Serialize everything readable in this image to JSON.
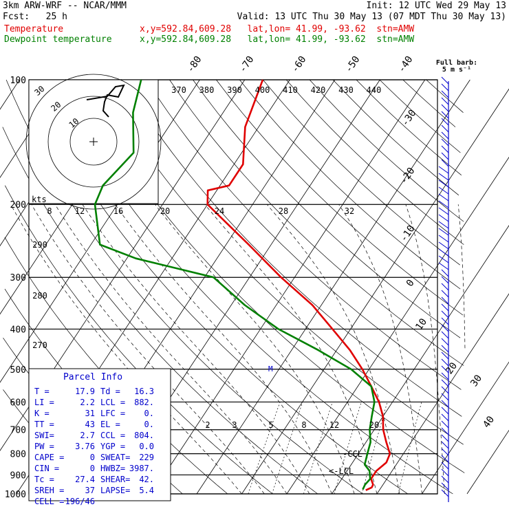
{
  "header": {
    "line1_left": "3km ARW-WRF -- NCAR/MMM",
    "line1_right": "Init: 12 UTC Wed 29 May 13",
    "line2_left": "Fcst:   25 h",
    "line2_right": "Valid: 13 UTC Thu 30 May 13 (07 MDT Thu 30 May 13)",
    "temp_label": "Temperature",
    "temp_info": "x,y=592.84,609.28   lat,lon= 41.99, -93.62  stn=AMW",
    "dew_label": "Dewpoint temperature",
    "dew_info": "x,y=592.84,609.28   lat,lon= 41.99, -93.62  stn=AMW"
  },
  "barb_legend": {
    "line1": "Full barb:",
    "line2": "5 m s⁻¹"
  },
  "hodograph": {
    "ring_labels": [
      "30",
      "20",
      "10"
    ],
    "units": "kts"
  },
  "parcel_info": {
    "title": "Parcel Info",
    "rows": [
      [
        "T  =",
        "17.9",
        "Td =",
        "16.3"
      ],
      [
        "LI =",
        "2.2",
        "LCL =",
        "882."
      ],
      [
        "K  =",
        "31",
        "LFC =",
        "0."
      ],
      [
        "TT =",
        "43",
        "EL  =",
        "0."
      ],
      [
        "SWI=",
        "2.7",
        "CCL =",
        "804."
      ],
      [
        "PW =",
        "3.76",
        "YGP =",
        "0.0"
      ],
      [
        "CAPE =",
        "0",
        "SWEAT=",
        "229"
      ],
      [
        "CIN =",
        "0",
        "HWBZ=",
        "3987."
      ],
      [
        "Tc =",
        "27.4",
        "SHEAR=",
        "42."
      ],
      [
        "SREH =",
        "37",
        "LAPSE=",
        "5.4"
      ],
      [
        "CELL =",
        "196/46",
        "",
        ""
      ]
    ]
  },
  "annotations": {
    "ccl": "-CCL",
    "lcl": "<-LCL",
    "m_marker": "M"
  },
  "chart_data": {
    "type": "line",
    "chart_kind": "skew-T log-P sounding",
    "pressure_levels": [
      100,
      200,
      300,
      400,
      500,
      600,
      700,
      800,
      900,
      1000
    ],
    "pressure_range": [
      100,
      1000
    ],
    "isotherm_labels": [
      "-80",
      "-70",
      "-60",
      "-50",
      "-40",
      "-30",
      "-20",
      "-10",
      "0",
      "10",
      "20",
      "30",
      "40"
    ],
    "theta_labels_top": [
      "370",
      "380",
      "390",
      "400",
      "410",
      "420",
      "430",
      "440"
    ],
    "theta_labels_left": [
      "290",
      "280",
      "270"
    ],
    "mixing_ratio_labels_mid": [
      "8",
      "12",
      "16",
      "20",
      "24",
      "28",
      "32"
    ],
    "mixing_ratio_labels_low": [
      "2",
      "3",
      "5",
      "8",
      "12",
      "20"
    ],
    "series": [
      {
        "name": "Temperature",
        "color": "#e00000",
        "points": [
          [
            100,
            -66
          ],
          [
            130,
            -63
          ],
          [
            160,
            -58
          ],
          [
            180,
            -58
          ],
          [
            185,
            -62
          ],
          [
            200,
            -60
          ],
          [
            250,
            -45
          ],
          [
            300,
            -33
          ],
          [
            350,
            -22
          ],
          [
            400,
            -14
          ],
          [
            450,
            -7
          ],
          [
            500,
            -1.5
          ],
          [
            550,
            3
          ],
          [
            600,
            7
          ],
          [
            650,
            10
          ],
          [
            700,
            12
          ],
          [
            750,
            14.5
          ],
          [
            800,
            17
          ],
          [
            840,
            17.5
          ],
          [
            880,
            16.5
          ],
          [
            920,
            16.5
          ],
          [
            950,
            17.8
          ],
          [
            965,
            17.9
          ],
          [
            980,
            17
          ]
        ]
      },
      {
        "name": "Dewpoint temperature",
        "color": "#008000",
        "points": [
          [
            100,
            -93
          ],
          [
            120,
            -90
          ],
          [
            150,
            -84
          ],
          [
            180,
            -86
          ],
          [
            200,
            -85
          ],
          [
            250,
            -78
          ],
          [
            270,
            -68
          ],
          [
            300,
            -48
          ],
          [
            350,
            -37
          ],
          [
            400,
            -26
          ],
          [
            450,
            -14
          ],
          [
            500,
            -4
          ],
          [
            550,
            3
          ],
          [
            600,
            6
          ],
          [
            650,
            7.5
          ],
          [
            700,
            9
          ],
          [
            750,
            11
          ],
          [
            800,
            12
          ],
          [
            850,
            13
          ],
          [
            880,
            15
          ],
          [
            920,
            16.3
          ],
          [
            950,
            16
          ],
          [
            975,
            16.2
          ]
        ]
      }
    ]
  }
}
